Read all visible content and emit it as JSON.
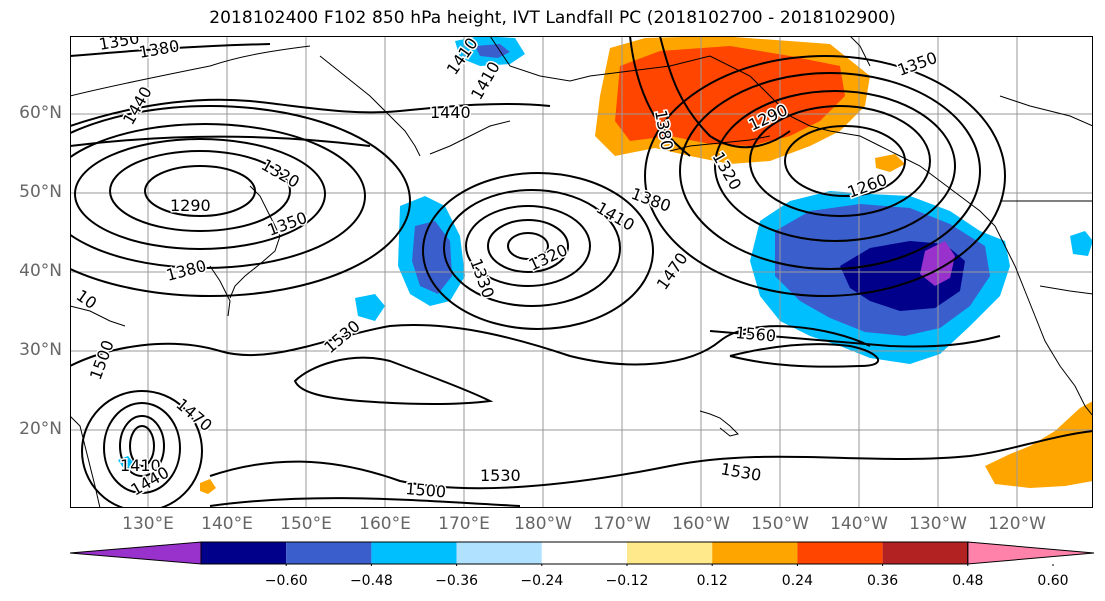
{
  "title": "2018102400 F102 850 hPa height, IVT Landfall PC (2018102700 - 2018102900)",
  "lat_labels": [
    "60°N",
    "50°N",
    "40°N",
    "30°N",
    "20°N"
  ],
  "lon_labels": [
    "130°E",
    "140°E",
    "150°E",
    "160°E",
    "170°E",
    "180°W",
    "170°W",
    "160°W",
    "150°W",
    "140°W",
    "130°W",
    "120°W"
  ],
  "contour_labels": [
    "1350",
    "1380",
    "1410",
    "1440",
    "1440",
    "1320",
    "1290",
    "1350",
    "1380",
    "10",
    "1380",
    "1410",
    "1330",
    "1320",
    "1470",
    "1530",
    "1500",
    "1470",
    "1410",
    "1440",
    "1410",
    "1380",
    "1320",
    "1290",
    "1350",
    "1260",
    "1560",
    "1530",
    "1500",
    "1530"
  ],
  "colorbar": {
    "colors": [
      "#9932cc",
      "#00008b",
      "#3a5fcd",
      "#00bfff",
      "#b0e2ff",
      "#ffffff",
      "#ffe98a",
      "#ffa500",
      "#ff4500",
      "#b22222",
      "#ff82ab"
    ],
    "tick_labels": [
      "−0.60",
      "−0.48",
      "−0.36",
      "−0.24",
      "−0.12",
      "0.12",
      "0.24",
      "0.36",
      "0.48",
      "0.60"
    ]
  }
}
